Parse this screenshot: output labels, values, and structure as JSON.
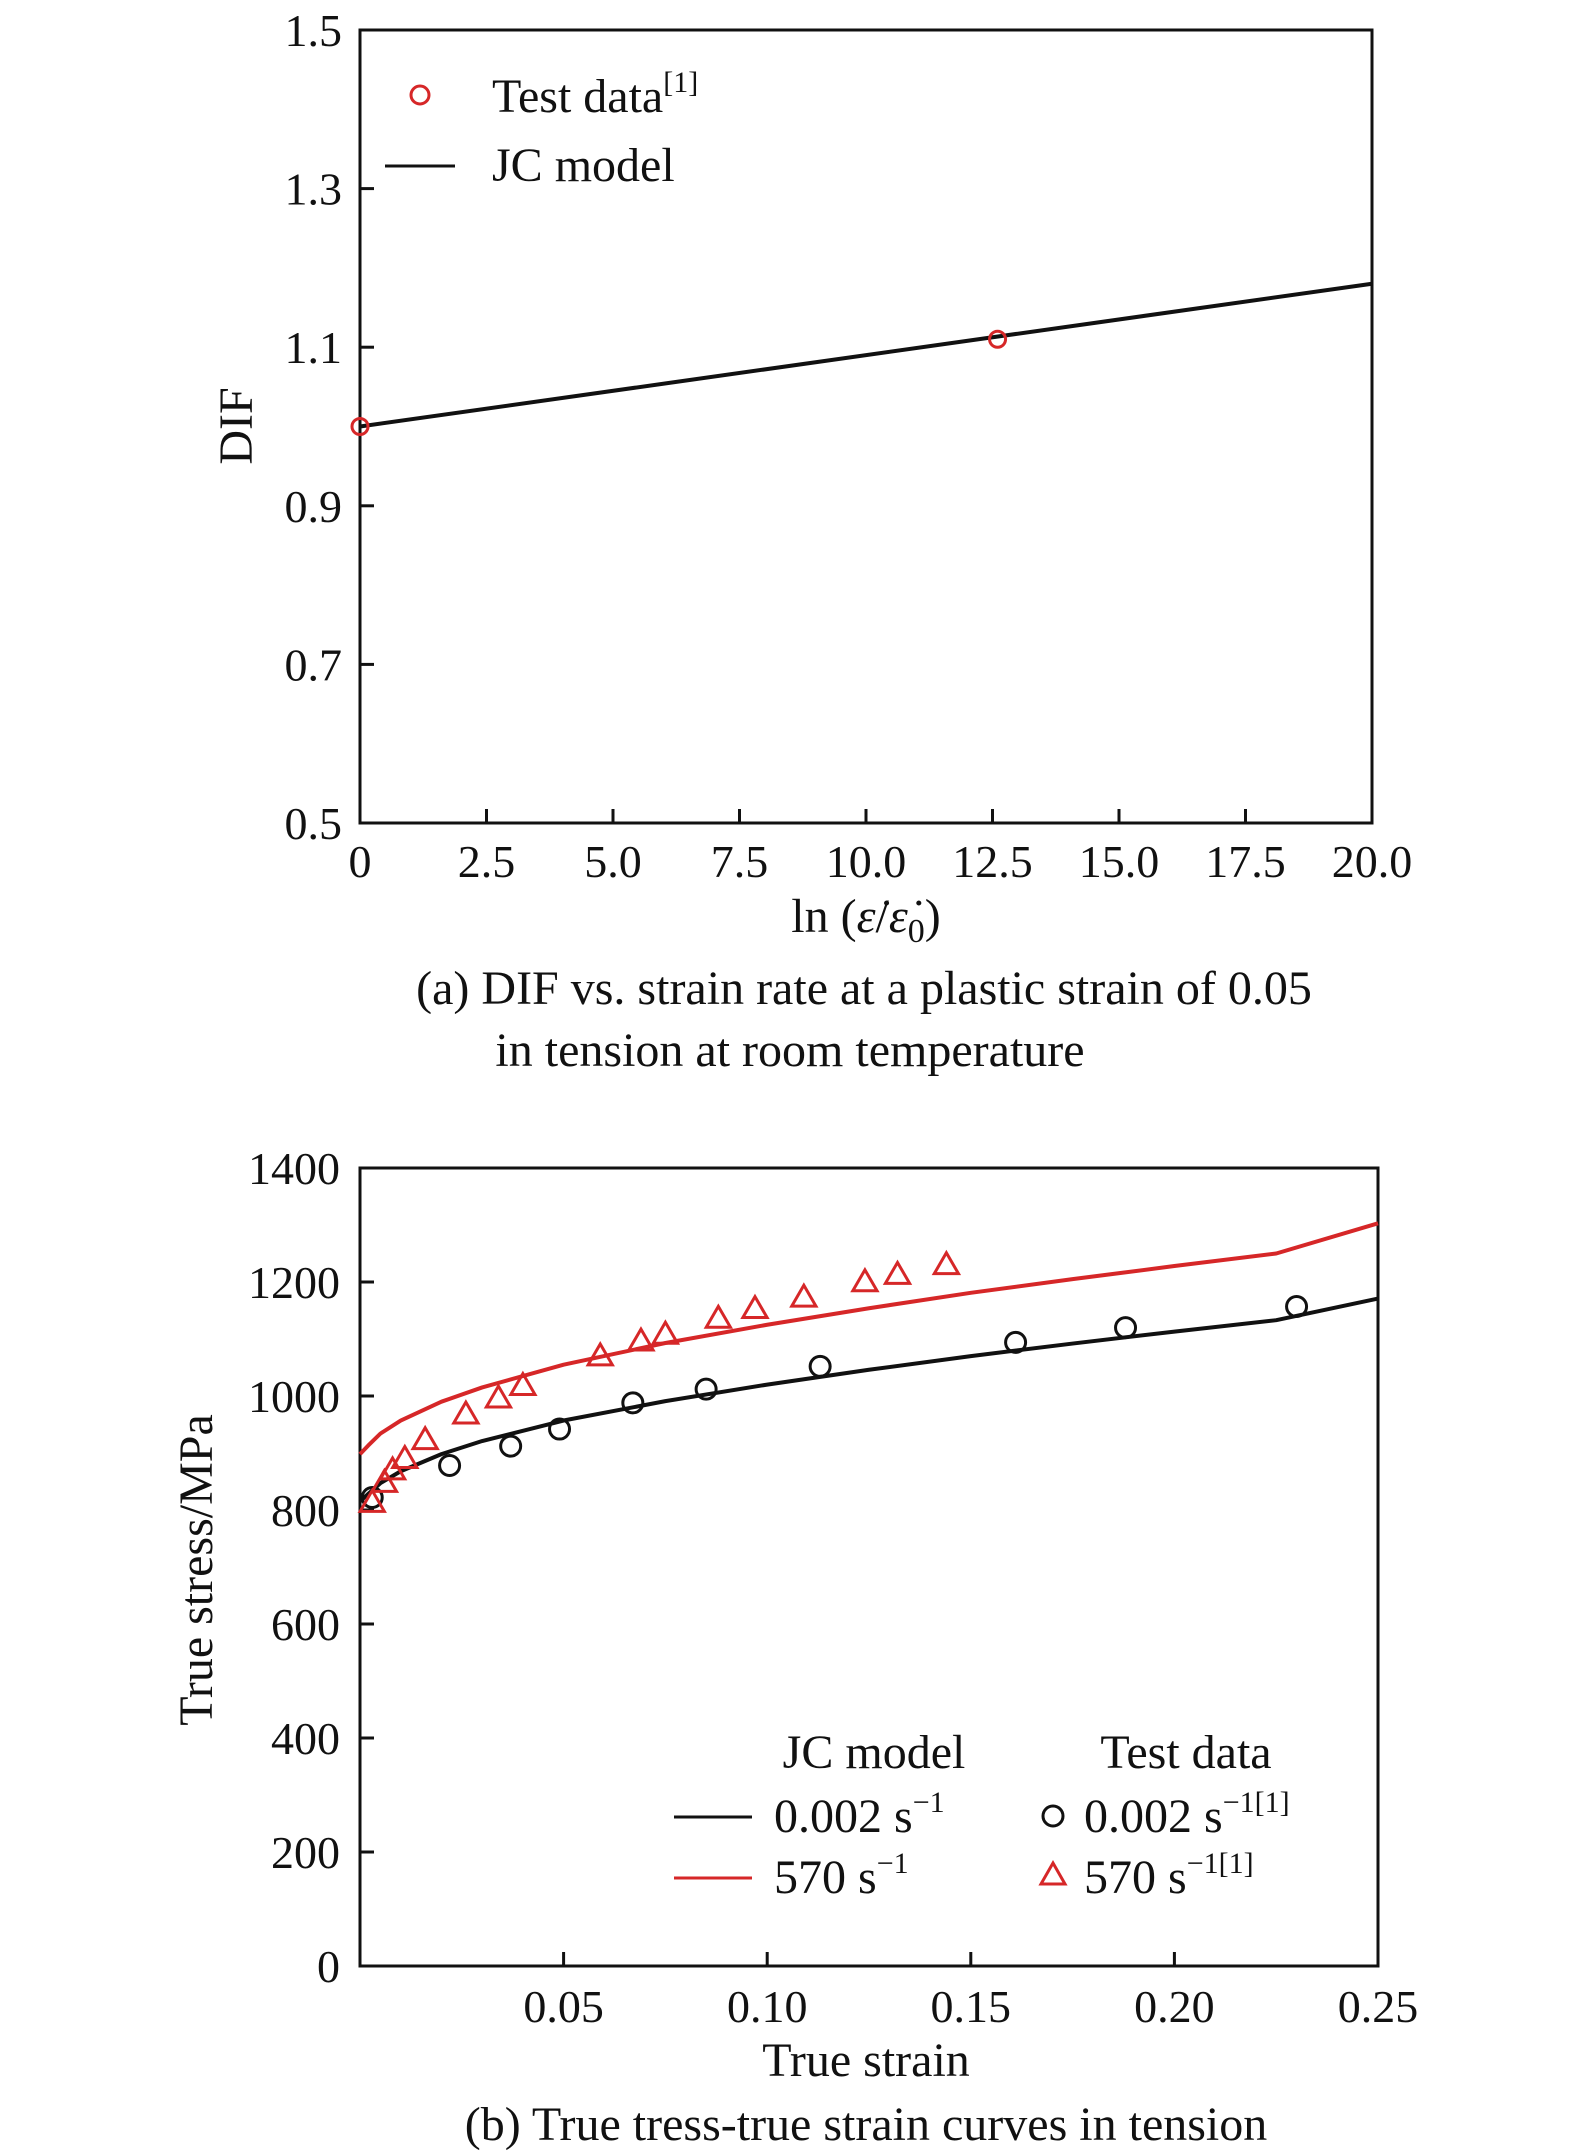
{
  "chart_data": [
    {
      "panel": "(a)",
      "type": "line",
      "caption_lines": [
        "(a) DIF vs. strain rate at a plastic strain of 0.05",
        "in tension at room temperature"
      ],
      "xlabel": "ln (ε̇/ε̇0)",
      "ylabel": "DIF",
      "xlim": [
        0,
        20
      ],
      "ylim": [
        0.5,
        1.5
      ],
      "x_ticks": [
        "0",
        "2.5",
        "5.0",
        "7.5",
        "10.0",
        "12.5",
        "15.0",
        "17.5",
        "20.0"
      ],
      "y_ticks": [
        "0.5",
        "0.7",
        "0.9",
        "1.1",
        "1.3",
        "1.5"
      ],
      "grid": false,
      "legend_position": "top-left",
      "series": [
        {
          "name": "Test data",
          "name_sup": "[1]",
          "kind": "scatter",
          "marker": "circle",
          "color": "#d62728",
          "x": [
            0,
            12.6
          ],
          "y": [
            1.0,
            1.11
          ]
        },
        {
          "name": "JC model",
          "kind": "line",
          "color": "#111111",
          "x": [
            0,
            20
          ],
          "y": [
            1.0,
            1.18
          ]
        }
      ]
    },
    {
      "panel": "(b)",
      "type": "line",
      "caption": "(b) True tress-true strain curves in tension",
      "xlabel": "True strain",
      "ylabel": "True stress/MPa",
      "xlim": [
        0,
        0.25
      ],
      "ylim": [
        0,
        1400
      ],
      "x_ticks": [
        "0.05",
        "0.10",
        "0.15",
        "0.20",
        "0.25"
      ],
      "y_ticks": [
        "0",
        "200",
        "400",
        "600",
        "800",
        "1000",
        "1200",
        "1400"
      ],
      "grid": false,
      "legend_position": "bottom-right",
      "legend_headers": [
        "JC model",
        "Test data"
      ],
      "series": [
        {
          "name": "0.002 s",
          "name_sup": "−1",
          "kind": "line",
          "color": "#111111",
          "x": [
            0.0,
            0.002,
            0.005,
            0.01,
            0.02,
            0.03,
            0.05,
            0.075,
            0.1,
            0.125,
            0.15,
            0.175,
            0.2,
            0.225,
            0.25
          ],
          "y": [
            815,
            828,
            847,
            868,
            898,
            921,
            957,
            991,
            1020,
            1046,
            1070,
            1092,
            1113,
            1133,
            1171
          ]
        },
        {
          "name": "570 s",
          "name_sup": "−1",
          "kind": "line",
          "color": "#d62728",
          "x": [
            0.0,
            0.002,
            0.005,
            0.01,
            0.02,
            0.03,
            0.05,
            0.075,
            0.1,
            0.125,
            0.15,
            0.175,
            0.2,
            0.225,
            0.25
          ],
          "y": [
            898,
            913,
            934,
            957,
            990,
            1015,
            1055,
            1093,
            1125,
            1154,
            1181,
            1205,
            1228,
            1250,
            1303
          ]
        },
        {
          "name": "0.002 s",
          "name_sup": "−1[1]",
          "kind": "scatter",
          "marker": "circle",
          "color": "#111111",
          "x": [
            0.003,
            0.022,
            0.037,
            0.049,
            0.067,
            0.085,
            0.113,
            0.161,
            0.188,
            0.23
          ],
          "y": [
            822,
            878,
            912,
            942,
            988,
            1012,
            1052,
            1094,
            1120,
            1157
          ]
        },
        {
          "name": "570 s",
          "name_sup": "−1[1]",
          "kind": "scatter",
          "marker": "triangle",
          "color": "#d62728",
          "x": [
            0.003,
            0.006,
            0.008,
            0.011,
            0.016,
            0.026,
            0.034,
            0.04,
            0.059,
            0.069,
            0.075,
            0.088,
            0.097,
            0.109,
            0.124,
            0.132,
            0.144
          ],
          "y": [
            815,
            850,
            872,
            892,
            925,
            970,
            998,
            1020,
            1072,
            1098,
            1110,
            1138,
            1155,
            1175,
            1202,
            1215,
            1232
          ]
        }
      ]
    }
  ]
}
